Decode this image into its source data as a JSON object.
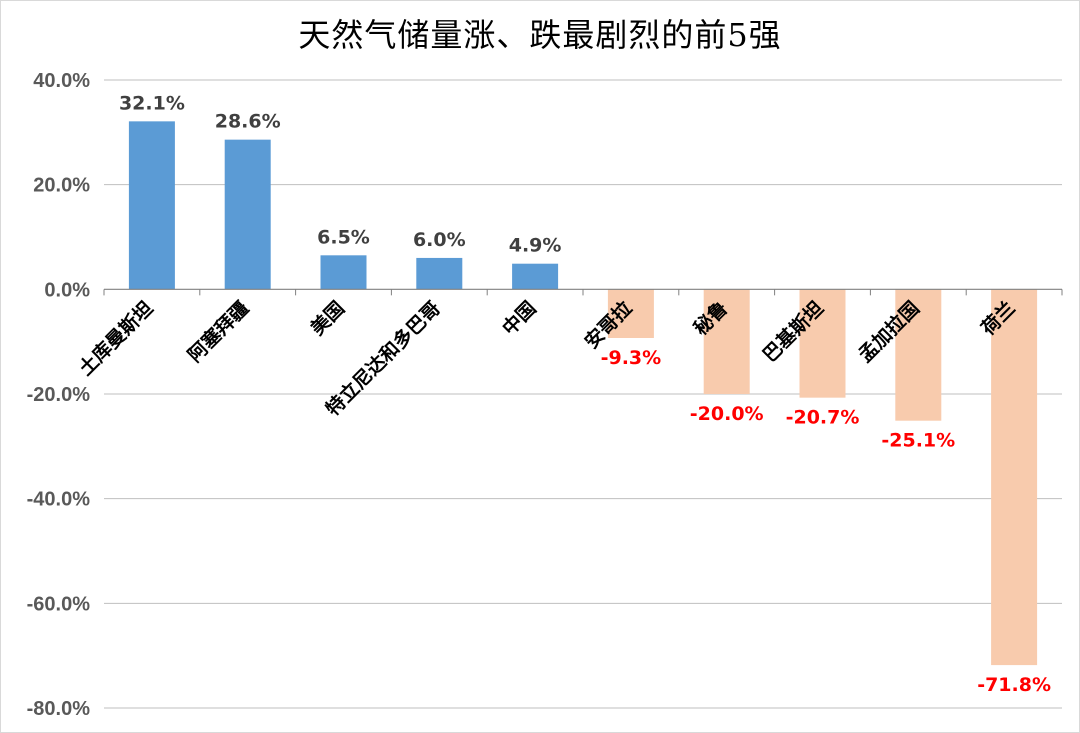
{
  "chart_data": {
    "type": "bar",
    "title": "天然气储量涨、跌最剧烈的前5强",
    "categories": [
      "土库曼斯坦",
      "阿塞拜疆",
      "美国",
      "特立尼达和多巴哥",
      "中国",
      "安哥拉",
      "秘鲁",
      "巴基斯坦",
      "孟加拉国",
      "荷兰"
    ],
    "values": [
      32.1,
      28.6,
      6.5,
      6.0,
      4.9,
      -9.3,
      -20.0,
      -20.7,
      -25.1,
      -71.8
    ],
    "value_labels": [
      "32.1%",
      "28.6%",
      "6.5%",
      "6.0%",
      "4.9%",
      "-9.3%",
      "-20.0%",
      "-20.7%",
      "-25.1%",
      "-71.8%"
    ],
    "ylim": [
      -80,
      40
    ],
    "yticks": [
      40,
      20,
      0,
      -20,
      -40,
      -60,
      -80
    ],
    "ytick_labels": [
      "40.0%",
      "20.0%",
      "0.0%",
      "-20.0%",
      "-40.0%",
      "-60.0%",
      "-80.0%"
    ],
    "xlabel": "",
    "ylabel": "",
    "grid": true,
    "legend": "none",
    "colors": {
      "positive_bar": "#5b9bd5",
      "negative_bar": "#f8cbad",
      "positive_label": "#404040",
      "negative_label": "#ff0000",
      "gridline": "#bfbfbf"
    }
  }
}
